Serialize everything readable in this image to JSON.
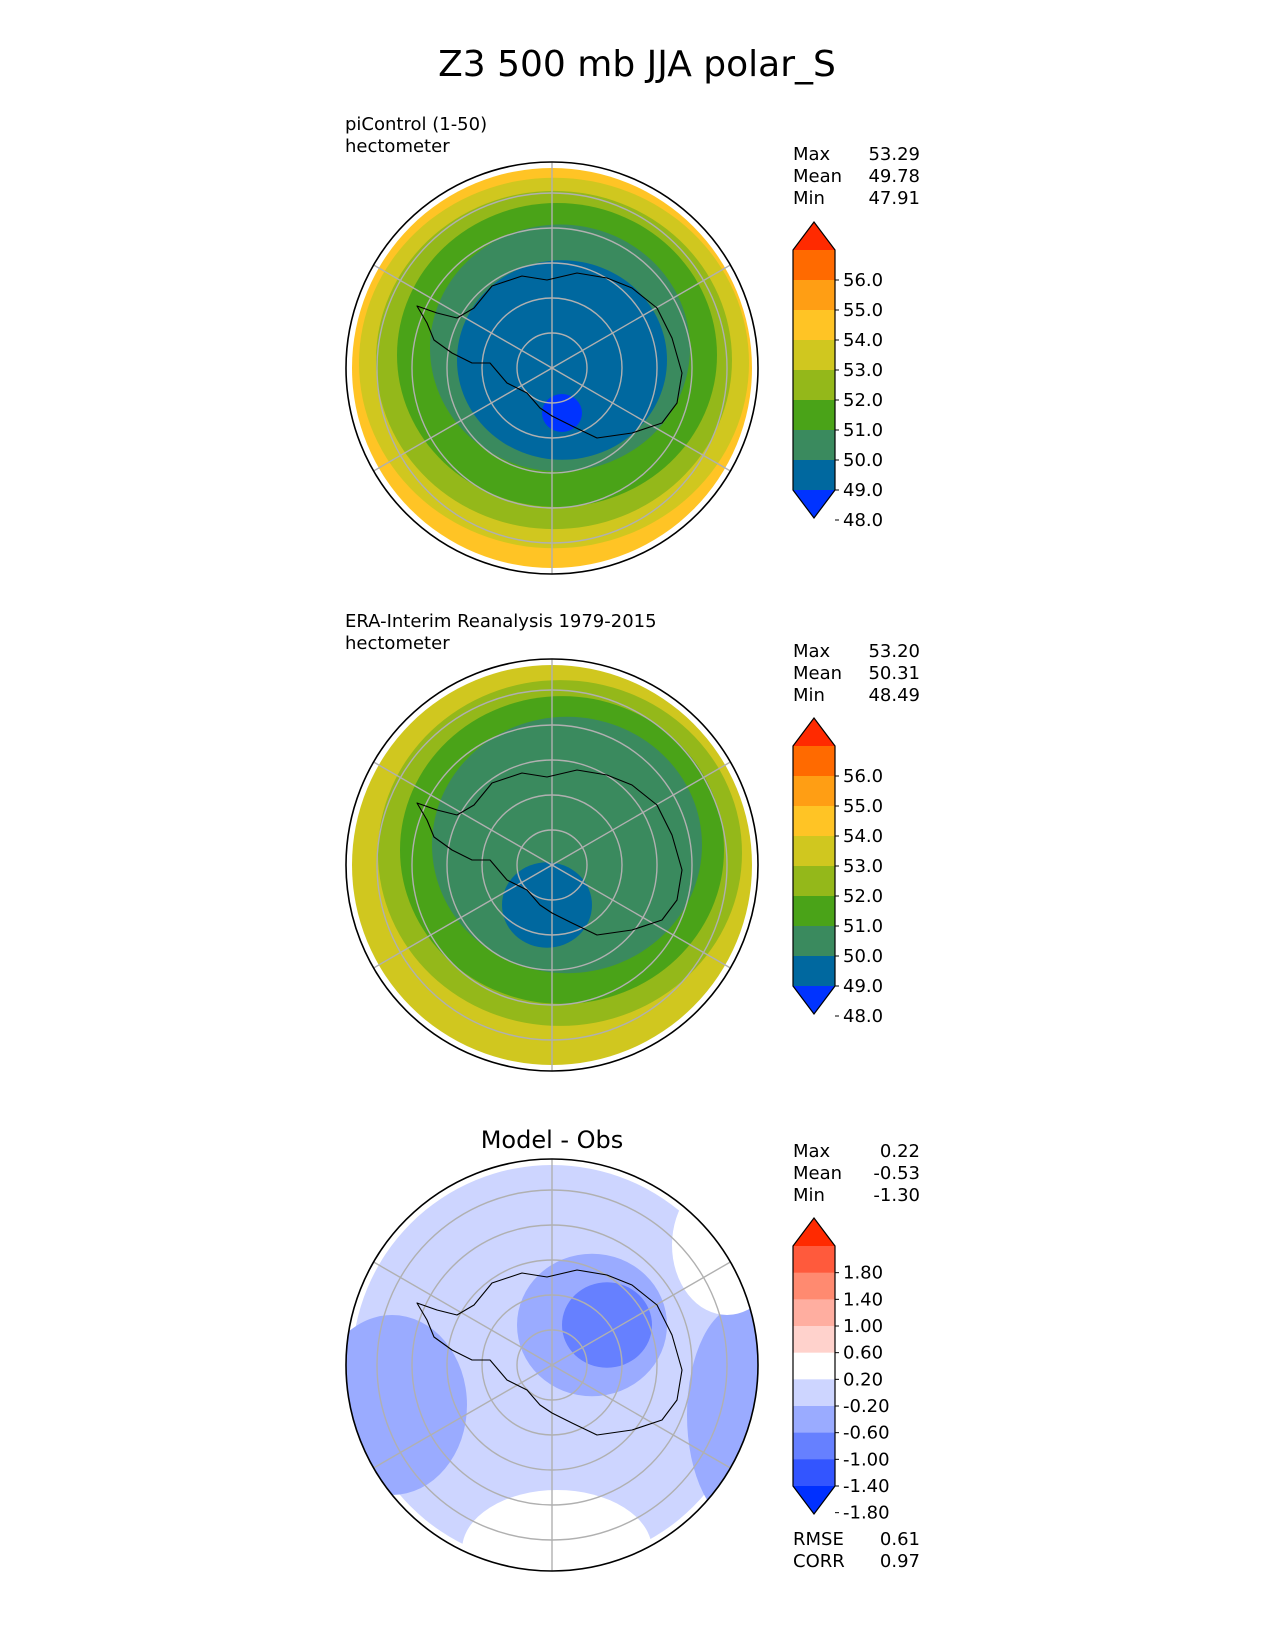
{
  "figure": {
    "title": "Z3 500 mb JJA polar_S"
  },
  "chart_data": [
    {
      "type": "heatmap",
      "projection": "south-polar-stereographic",
      "title_lines": [
        "piControl (1-50)",
        "hectometer"
      ],
      "stats": [
        {
          "label": "Max",
          "value": "53.29"
        },
        {
          "label": "Mean",
          "value": "49.78"
        },
        {
          "label": "Min",
          "value": "47.91"
        }
      ],
      "colorbar": {
        "ticks": [
          "56.0",
          "55.0",
          "54.0",
          "53.0",
          "52.0",
          "51.0",
          "50.0",
          "49.0",
          "48.0"
        ],
        "colors": [
          "#ff2a00",
          "#ff6a00",
          "#ff9e14",
          "#ffc425",
          "#d0c71f",
          "#94b81a",
          "#4aa318",
          "#3a8a5e",
          "#00689f",
          "#0033ff"
        ],
        "extend": "both"
      },
      "field": {
        "rings": [
          {
            "value_band": "53-54",
            "color": "#ffc425",
            "r": 200,
            "dx": 0,
            "dy": 0
          },
          {
            "value_band": "52-53",
            "color": "#d0c71f",
            "r": 195,
            "dx": 2,
            "dy": -5
          },
          {
            "value_band": "51-52",
            "color": "#94b81a",
            "r": 178,
            "dx": 2,
            "dy": -8
          },
          {
            "value_band": "50-51",
            "color": "#4aa318",
            "r": 160,
            "dx": 5,
            "dy": -13
          },
          {
            "value_band": "49-50",
            "color": "#3a8a5e",
            "r": 130,
            "dx": 8,
            "dy": -20
          },
          {
            "value_band": "48-49",
            "color": "#00689f",
            "r": 105,
            "dx": 10,
            "dy": -8
          },
          {
            "value_band": "<48",
            "color": "#0033ff",
            "r": 20,
            "dx": 10,
            "dy": 45
          }
        ]
      }
    },
    {
      "type": "heatmap",
      "projection": "south-polar-stereographic",
      "title_lines": [
        "ERA-Interim Reanalysis 1979-2015",
        "hectometer"
      ],
      "stats": [
        {
          "label": "Max",
          "value": "53.20"
        },
        {
          "label": "Mean",
          "value": "50.31"
        },
        {
          "label": "Min",
          "value": "48.49"
        }
      ],
      "colorbar": {
        "ticks": [
          "56.0",
          "55.0",
          "54.0",
          "53.0",
          "52.0",
          "51.0",
          "50.0",
          "49.0",
          "48.0"
        ],
        "colors": [
          "#ff2a00",
          "#ff6a00",
          "#ff9e14",
          "#ffc425",
          "#d0c71f",
          "#94b81a",
          "#4aa318",
          "#3a8a5e",
          "#00689f",
          "#0033ff"
        ],
        "extend": "both"
      },
      "field": {
        "rings": [
          {
            "value_band": "52-53",
            "color": "#d0c71f",
            "r": 200,
            "dx": 0,
            "dy": 0
          },
          {
            "value_band": "51-52",
            "color": "#94b81a",
            "r": 182,
            "dx": 8,
            "dy": -12
          },
          {
            "value_band": "50-51",
            "color": "#4aa318",
            "r": 162,
            "dx": 10,
            "dy": -15
          },
          {
            "value_band": "49-50",
            "color": "#3a8a5e",
            "r": 135,
            "dx": 15,
            "dy": -20
          },
          {
            "value_band": "48-49",
            "color": "#00689f",
            "r": 45,
            "dx": -5,
            "dy": 40
          }
        ]
      }
    },
    {
      "type": "heatmap",
      "projection": "south-polar-stereographic",
      "title_lines": [
        "Model - Obs"
      ],
      "stats": [
        {
          "label": "Max",
          "value": "0.22"
        },
        {
          "label": "Mean",
          "value": "-0.53"
        },
        {
          "label": "Min",
          "value": "-1.30"
        }
      ],
      "metrics": [
        {
          "label": "RMSE",
          "value": "0.61"
        },
        {
          "label": "CORR",
          "value": "0.97"
        }
      ],
      "colorbar": {
        "ticks": [
          "1.80",
          "1.40",
          "1.00",
          "0.60",
          "0.20",
          "-0.20",
          "-0.60",
          "-1.00",
          "-1.40",
          "-1.80"
        ],
        "colors": [
          "#ff2a00",
          "#ff5a3c",
          "#ff8a70",
          "#ffaea0",
          "#ffd2cc",
          "#ffffff",
          "#cdd5ff",
          "#9aabff",
          "#6680ff",
          "#3355ff",
          "#0030ff"
        ],
        "extend": "both"
      },
      "field": {
        "rings": [
          {
            "value_band": "-0.6 to -0.2",
            "color": "#cdd5ff",
            "r": 200,
            "dx": 0,
            "dy": 0
          },
          {
            "value_band": "-1.0 to -0.6",
            "color": "#9aabff",
            "r": 75,
            "dx": 40,
            "dy": -40
          },
          {
            "value_band": "-1.4 to -1.0",
            "color": "#6680ff",
            "r": 45,
            "dx": 55,
            "dy": -40
          }
        ]
      }
    }
  ]
}
